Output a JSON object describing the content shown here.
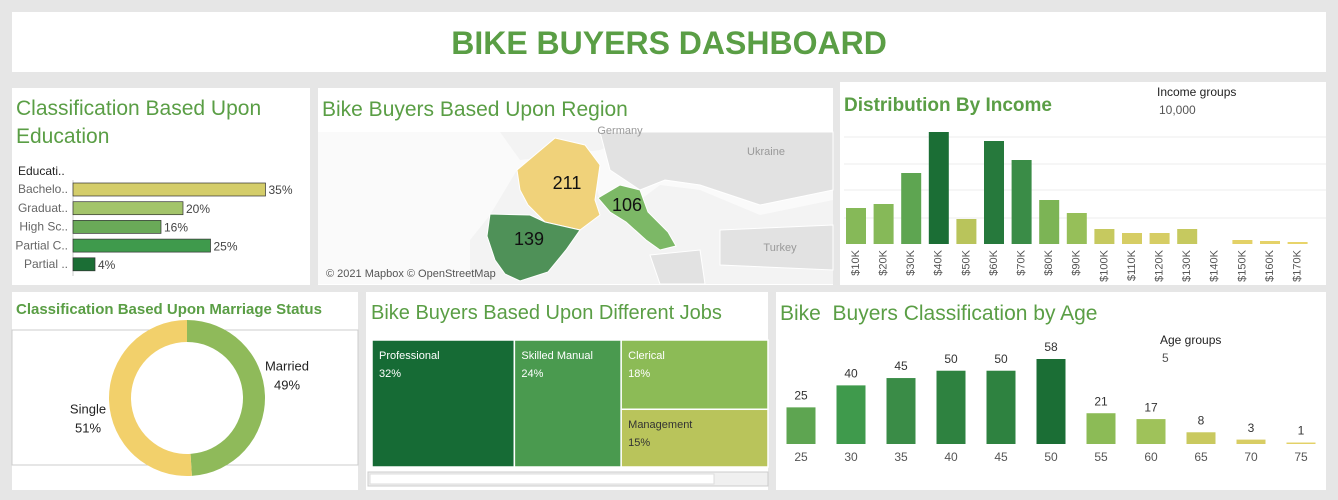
{
  "header": {
    "title": "BIKE BUYERS DASHBOARD"
  },
  "chart_data": [
    {
      "type": "hbar",
      "title": "Classification Based Upon Education",
      "axis_label": "Educati..",
      "categories": [
        "Bachelo..",
        "Graduat..",
        "High Sc..",
        "Partial C..",
        "Partial .."
      ],
      "values": [
        35,
        20,
        16,
        25,
        4
      ],
      "value_labels": [
        "35%",
        "20%",
        "16%",
        "25%",
        "4%"
      ],
      "colors": [
        "#d4cd6a",
        "#a3c46a",
        "#6aaa58",
        "#3f9a4c",
        "#1b6e35"
      ]
    },
    {
      "type": "map",
      "title": "Bike Buyers Based Upon Region",
      "values": [
        211,
        106,
        139
      ],
      "colors": [
        "#f0d27a",
        "#7cb866",
        "#4f9158"
      ],
      "place_labels": [
        "Germany",
        "Ukraine",
        "Turkey"
      ],
      "attribution": "© 2021 Mapbox © OpenStreetMap"
    },
    {
      "type": "bar",
      "title": "Distribution By Income",
      "categories": [
        "$10K",
        "$20K",
        "$30K",
        "$40K",
        "$50K",
        "$60K",
        "$70K",
        "$80K",
        "$90K",
        "$100K",
        "$110K",
        "$120K",
        "$130K",
        "$140K",
        "$150K",
        "$160K",
        "$170K"
      ],
      "values": [
        36,
        40,
        71,
        112,
        25,
        103,
        84,
        44,
        31,
        15,
        11,
        11,
        15,
        0,
        4,
        3,
        2
      ],
      "colors": [
        "#86b958",
        "#86b958",
        "#5ea551",
        "#1b6e35",
        "#b9c45b",
        "#26793c",
        "#3a8c47",
        "#7cb455",
        "#96bf59",
        "#c6c95f",
        "#d6cd64",
        "#d6cd64",
        "#c6c95f",
        "#e8d46a",
        "#e3d167",
        "#e5d268",
        "#e8d46a"
      ],
      "legend": {
        "title": "Income groups",
        "value": "10,000"
      }
    },
    {
      "type": "donut",
      "title": "Classification Based Upon Marriage Status",
      "categories": [
        "Married",
        "Single"
      ],
      "values": [
        49,
        51
      ],
      "value_labels": [
        "49%",
        "51%"
      ],
      "colors": [
        "#8fba5a",
        "#f2d06b"
      ]
    },
    {
      "type": "treemap",
      "title": "Bike Buyers Based Upon Different Jobs",
      "categories": [
        "Professional",
        "Skilled Manual",
        "Clerical",
        "Management"
      ],
      "values": [
        32,
        24,
        18,
        15
      ],
      "value_labels": [
        "32%",
        "24%",
        "18%",
        "15%"
      ],
      "colors": [
        "#166b35",
        "#4a9a4f",
        "#8cbb56",
        "#b9c45b"
      ]
    },
    {
      "type": "bar",
      "title": "Bike  Buyers Classification by Age",
      "categories": [
        25,
        30,
        35,
        40,
        45,
        50,
        55,
        60,
        65,
        70,
        75
      ],
      "values": [
        25,
        40,
        45,
        50,
        50,
        58,
        21,
        17,
        8,
        3,
        1
      ],
      "colors": [
        "#5ea551",
        "#3f9a4c",
        "#3a8c47",
        "#2e8240",
        "#2e8240",
        "#1b6e35",
        "#8cbb56",
        "#9fc25a",
        "#c9c95f",
        "#d8cd64",
        "#e3d167"
      ],
      "legend": {
        "title": "Age groups",
        "value": "5"
      },
      "data_labels": true
    }
  ]
}
